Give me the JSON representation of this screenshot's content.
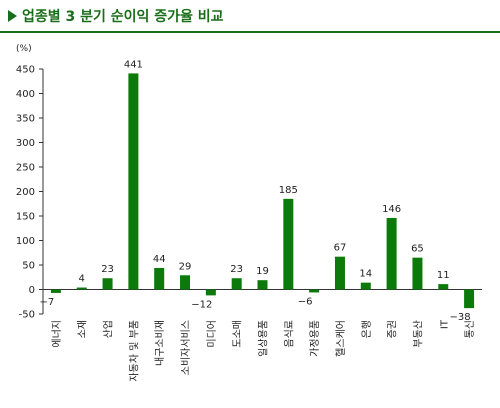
{
  "header": {
    "marker": "▶",
    "title": "업종별 3 분기 순이익 증가율 비교"
  },
  "colors": {
    "bar": "#0b7a0b",
    "title": "#1a6e1a",
    "axis": "#333333"
  },
  "chart_data": {
    "type": "bar",
    "title": "업종별 3 분기 순이익 증가율 비교",
    "unit": "(%)",
    "categories": [
      "에너지",
      "소재",
      "산업",
      "자동차 및 부품",
      "내구소비재",
      "소비자서비스",
      "미디어",
      "도소매",
      "일상용품",
      "음식료",
      "가정용품",
      "헬스케어",
      "은행",
      "증권",
      "부동산",
      "IT",
      "통신"
    ],
    "values": [
      -7,
      4,
      23,
      441,
      44,
      29,
      -12,
      23,
      19,
      185,
      -6,
      67,
      14,
      146,
      65,
      11,
      -38
    ],
    "value_labels": [
      "−7",
      "4",
      "23",
      "441",
      "44",
      "29",
      "−12",
      "23",
      "19",
      "185",
      "−6",
      "67",
      "14",
      "146",
      "65",
      "11",
      "−38"
    ],
    "ylim": [
      -50,
      450
    ],
    "yticks": [
      -50,
      0,
      50,
      100,
      150,
      200,
      250,
      300,
      350,
      400,
      450
    ],
    "ytick_labels": [
      "-50",
      "0",
      "50",
      "100",
      "150",
      "200",
      "250",
      "300",
      "350",
      "400",
      "450"
    ],
    "grid": false,
    "legend": "none"
  }
}
